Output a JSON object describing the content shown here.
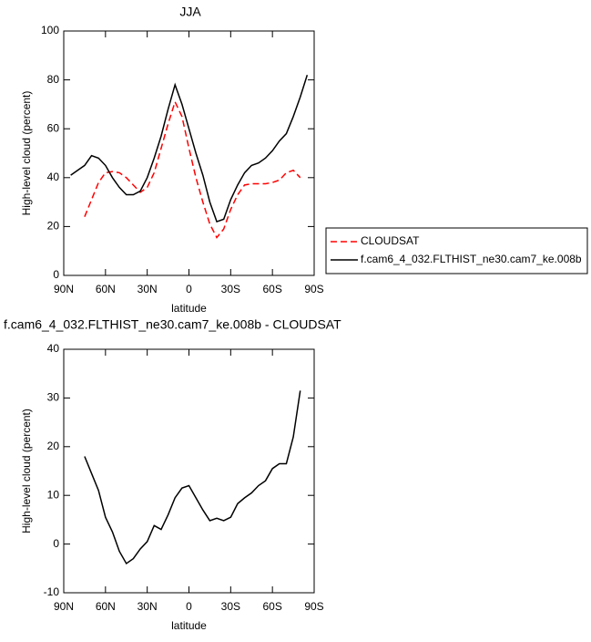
{
  "chart_data": [
    {
      "type": "line",
      "title": "JJA",
      "xlabel": "latitude",
      "ylabel": "High-level cloud (percent)",
      "x": [
        90,
        85,
        80,
        75,
        70,
        65,
        60,
        55,
        50,
        45,
        40,
        35,
        30,
        25,
        20,
        15,
        10,
        5,
        0,
        -5,
        -10,
        -15,
        -20,
        -25,
        -30,
        -35,
        -40,
        -45,
        -50,
        -55,
        -60,
        -65,
        -70,
        -75,
        -80,
        -85,
        -90
      ],
      "xlim": [
        90,
        -90
      ],
      "xticks": [
        {
          "value": 90,
          "label": "90N"
        },
        {
          "value": 60,
          "label": "60N"
        },
        {
          "value": 30,
          "label": "30N"
        },
        0,
        {
          "value": -30,
          "label": "30S"
        },
        {
          "value": -60,
          "label": "60S"
        },
        {
          "value": -90,
          "label": "90S"
        }
      ],
      "ylim": [
        0,
        100
      ],
      "yticks": [
        0,
        20,
        40,
        60,
        80,
        100
      ],
      "legend": "outside-right",
      "series": [
        {
          "name": "CLOUDSAT",
          "color": "#ff0000",
          "dash": true,
          "values": [
            null,
            null,
            null,
            24,
            31,
            38,
            42,
            42.5,
            42,
            40,
            37,
            34,
            36,
            42,
            52,
            62,
            71,
            65,
            52,
            40,
            30,
            21,
            15.5,
            19,
            27,
            33,
            37,
            37.5,
            37.5,
            37.5,
            38,
            39,
            42,
            43,
            40,
            null,
            null
          ]
        },
        {
          "name": "f.cam6_4_032.FLTHIST_ne30.cam7_ke.008b",
          "color": "#000000",
          "dash": false,
          "values": [
            null,
            41,
            43,
            45,
            49,
            48,
            45,
            40,
            36,
            33,
            33,
            34.5,
            40,
            48,
            57,
            68,
            78,
            70,
            60,
            50,
            41,
            30,
            22,
            23,
            31,
            37,
            42,
            45,
            46,
            48,
            51,
            55,
            58,
            65,
            73,
            82,
            null
          ]
        }
      ]
    },
    {
      "type": "line",
      "title": "f.cam6_4_032.FLTHIST_ne30.cam7_ke.008b - CLOUDSAT",
      "xlabel": "latitude",
      "ylabel": "High-level cloud (percent)",
      "x": [
        90,
        85,
        80,
        75,
        70,
        65,
        60,
        55,
        50,
        45,
        40,
        35,
        30,
        25,
        20,
        15,
        10,
        5,
        0,
        -5,
        -10,
        -15,
        -20,
        -25,
        -30,
        -35,
        -40,
        -45,
        -50,
        -55,
        -60,
        -65,
        -70,
        -75,
        -80,
        -85,
        -90
      ],
      "xlim": [
        90,
        -90
      ],
      "xticks": [
        {
          "value": 90,
          "label": "90N"
        },
        {
          "value": 60,
          "label": "60N"
        },
        {
          "value": 30,
          "label": "30N"
        },
        0,
        {
          "value": -30,
          "label": "30S"
        },
        {
          "value": -60,
          "label": "60S"
        },
        {
          "value": -90,
          "label": "90S"
        }
      ],
      "ylim": [
        -10,
        40
      ],
      "yticks": [
        -10,
        0,
        10,
        20,
        30,
        40
      ],
      "series": [
        {
          "color": "#000000",
          "dash": false,
          "values": [
            null,
            null,
            null,
            18,
            14.5,
            11,
            5.5,
            2.5,
            -1.5,
            -4,
            -3,
            -1,
            0.5,
            3.8,
            3,
            6,
            9.5,
            11.5,
            12,
            9.5,
            7,
            4.8,
            5.3,
            4.8,
            5.5,
            8.3,
            9.5,
            10.5,
            12,
            13,
            15.5,
            16.5,
            16.5,
            22,
            31.5,
            null,
            null
          ]
        }
      ]
    }
  ]
}
